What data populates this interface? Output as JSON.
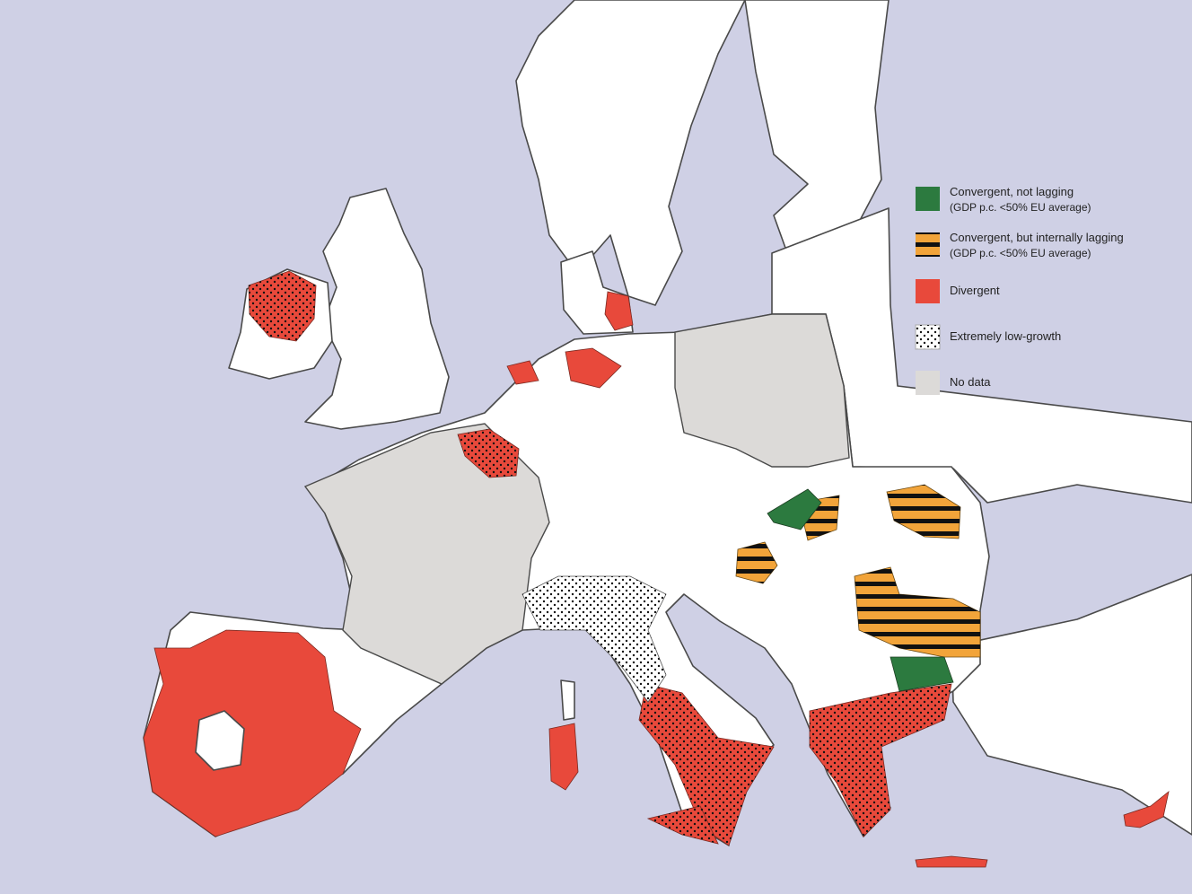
{
  "legend": {
    "items": [
      {
        "label": "Convergent, not lagging",
        "note": "(GDP p.c. <50% EU average)"
      },
      {
        "label": "Convergent, but internally lagging",
        "note": "(GDP p.c. <50% EU average)"
      },
      {
        "label": "Divergent"
      },
      {
        "label": "Extremely low-growth"
      },
      {
        "label": "No data"
      }
    ]
  }
}
